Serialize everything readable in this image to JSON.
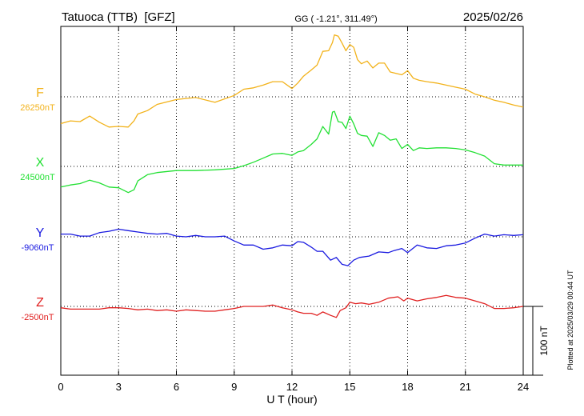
{
  "header": {
    "station": "Tatuoca (TTB)  [GFZ]",
    "coords": "GG ( -1.21°, 311.49°)",
    "date": "2025/02/26"
  },
  "footer": {
    "plotted": "Plotted at 2025/03/29 00:44 UT"
  },
  "chart_data": {
    "type": "line",
    "xlabel": "U T (hour)",
    "xlim": [
      0,
      24
    ],
    "x_ticks": [
      "0",
      "3",
      "6",
      "9",
      "12",
      "15",
      "18",
      "21",
      "24"
    ],
    "scale_bar": "100 nT",
    "grid": true,
    "series": [
      {
        "name": "F",
        "baseline_label": "26250nT",
        "color": "#f2b21a",
        "baseline": 26250,
        "x": [
          0,
          0.5,
          1,
          1.5,
          2,
          2.5,
          3,
          3.5,
          3.8,
          4,
          4.5,
          5,
          6,
          7,
          8,
          9,
          9.5,
          10,
          10.5,
          11,
          11.5,
          12,
          12.3,
          12.6,
          13,
          13.3,
          13.6,
          13.9,
          14.1,
          14.2,
          14.4,
          14.6,
          14.8,
          15,
          15.2,
          15.4,
          15.6,
          15.9,
          16.2,
          16.5,
          16.8,
          17.1,
          17.4,
          17.7,
          18,
          18.3,
          18.6,
          19,
          19.5,
          20,
          20.5,
          21,
          21.5,
          22,
          22.5,
          23,
          23.5,
          24
        ],
        "values": [
          -39,
          -35,
          -36,
          -28,
          -37,
          -44,
          -43,
          -44,
          -35,
          -25,
          -20,
          -11,
          -4,
          -1,
          -8,
          2,
          11,
          13,
          17,
          22,
          22,
          12,
          20,
          30,
          39,
          46,
          66,
          67,
          79,
          90,
          88,
          78,
          67,
          76,
          72,
          54,
          48,
          52,
          42,
          49,
          49,
          36,
          34,
          32,
          38,
          27,
          24,
          22,
          20,
          17,
          14,
          11,
          4,
          0,
          -5,
          -8,
          -12,
          -15
        ]
      },
      {
        "name": "X",
        "baseline_label": "24500nT",
        "color": "#22e033",
        "baseline": 24500,
        "x": [
          0,
          0.5,
          1,
          1.5,
          2,
          2.5,
          3,
          3.5,
          3.8,
          4,
          4.5,
          5,
          6,
          7,
          8,
          9,
          9.5,
          10,
          10.5,
          11,
          11.5,
          12,
          12.3,
          12.6,
          13,
          13.3,
          13.6,
          13.9,
          14.1,
          14.2,
          14.4,
          14.6,
          14.8,
          15,
          15.2,
          15.4,
          15.6,
          15.9,
          16.2,
          16.5,
          16.8,
          17.1,
          17.4,
          17.7,
          18,
          18.3,
          18.6,
          19,
          19.5,
          20,
          20.5,
          21,
          21.5,
          22,
          22.5,
          23,
          23.5,
          24
        ],
        "values": [
          -30,
          -27,
          -25,
          -20,
          -24,
          -30,
          -31,
          -38,
          -34,
          -21,
          -12,
          -9,
          -6,
          -6,
          -5,
          -3,
          1,
          6,
          12,
          18,
          19,
          16,
          21,
          23,
          32,
          40,
          58,
          47,
          79,
          80,
          65,
          64,
          55,
          73,
          62,
          48,
          45,
          44,
          29,
          49,
          45,
          38,
          40,
          26,
          32,
          23,
          27,
          26,
          27,
          27,
          26,
          24,
          20,
          15,
          4,
          2,
          2,
          2
        ]
      },
      {
        "name": "Y",
        "baseline_label": "-9060nT",
        "color": "#1a1ae0",
        "baseline": -9060,
        "x": [
          0,
          0.5,
          1,
          1.5,
          2,
          2.5,
          3,
          3.5,
          4,
          4.5,
          5,
          5.5,
          6,
          6.5,
          7,
          7.5,
          8,
          8.5,
          9,
          9.5,
          10,
          10.5,
          11,
          11.5,
          12,
          12.3,
          12.6,
          13,
          13.3,
          13.6,
          14,
          14.3,
          14.6,
          14.9,
          15.2,
          15.5,
          16,
          16.5,
          17,
          17.3,
          17.7,
          18,
          18.5,
          19,
          19.5,
          20,
          20.5,
          21,
          21.5,
          22,
          22.5,
          23,
          23.5,
          24
        ],
        "values": [
          4,
          4,
          1,
          1,
          6,
          8,
          11,
          9,
          7,
          5,
          4,
          5,
          1,
          0,
          2,
          0,
          0,
          1,
          -6,
          -12,
          -12,
          -18,
          -16,
          -12,
          -13,
          -7,
          -8,
          -15,
          -21,
          -21,
          -34,
          -30,
          -40,
          -42,
          -34,
          -30,
          -28,
          -22,
          -23,
          -20,
          -17,
          -23,
          -12,
          -16,
          -17,
          -13,
          -12,
          -9,
          -2,
          4,
          1,
          3,
          2,
          3
        ]
      },
      {
        "name": "Z",
        "baseline_label": "-2500nT",
        "color": "#e02020",
        "baseline": -2500,
        "x": [
          0,
          0.5,
          1,
          1.5,
          2,
          2.5,
          3,
          3.5,
          4,
          4.5,
          5,
          5.5,
          6,
          6.5,
          7,
          7.5,
          8,
          8.5,
          9,
          9.5,
          10,
          10.5,
          11,
          11.5,
          12,
          12.3,
          12.6,
          13,
          13.3,
          13.6,
          14,
          14.3,
          14.5,
          14.8,
          15,
          15.3,
          15.6,
          16,
          16.5,
          17,
          17.5,
          17.8,
          18,
          18.5,
          19,
          19.5,
          20,
          20.5,
          21,
          21.5,
          22,
          22.5,
          23,
          23.5,
          24
        ],
        "values": [
          -2,
          -4,
          -4,
          -4,
          -4,
          -2,
          -2,
          -3,
          -5,
          -4,
          -6,
          -5,
          -7,
          -5,
          -6,
          -7,
          -7,
          -5,
          -3,
          0,
          0,
          0,
          2,
          -2,
          -5,
          -8,
          -10,
          -10,
          -13,
          -8,
          -13,
          -16,
          -6,
          -2,
          6,
          4,
          5,
          3,
          6,
          12,
          14,
          8,
          12,
          8,
          11,
          13,
          16,
          13,
          12,
          8,
          4,
          -3,
          -3,
          -2,
          0
        ]
      }
    ]
  }
}
